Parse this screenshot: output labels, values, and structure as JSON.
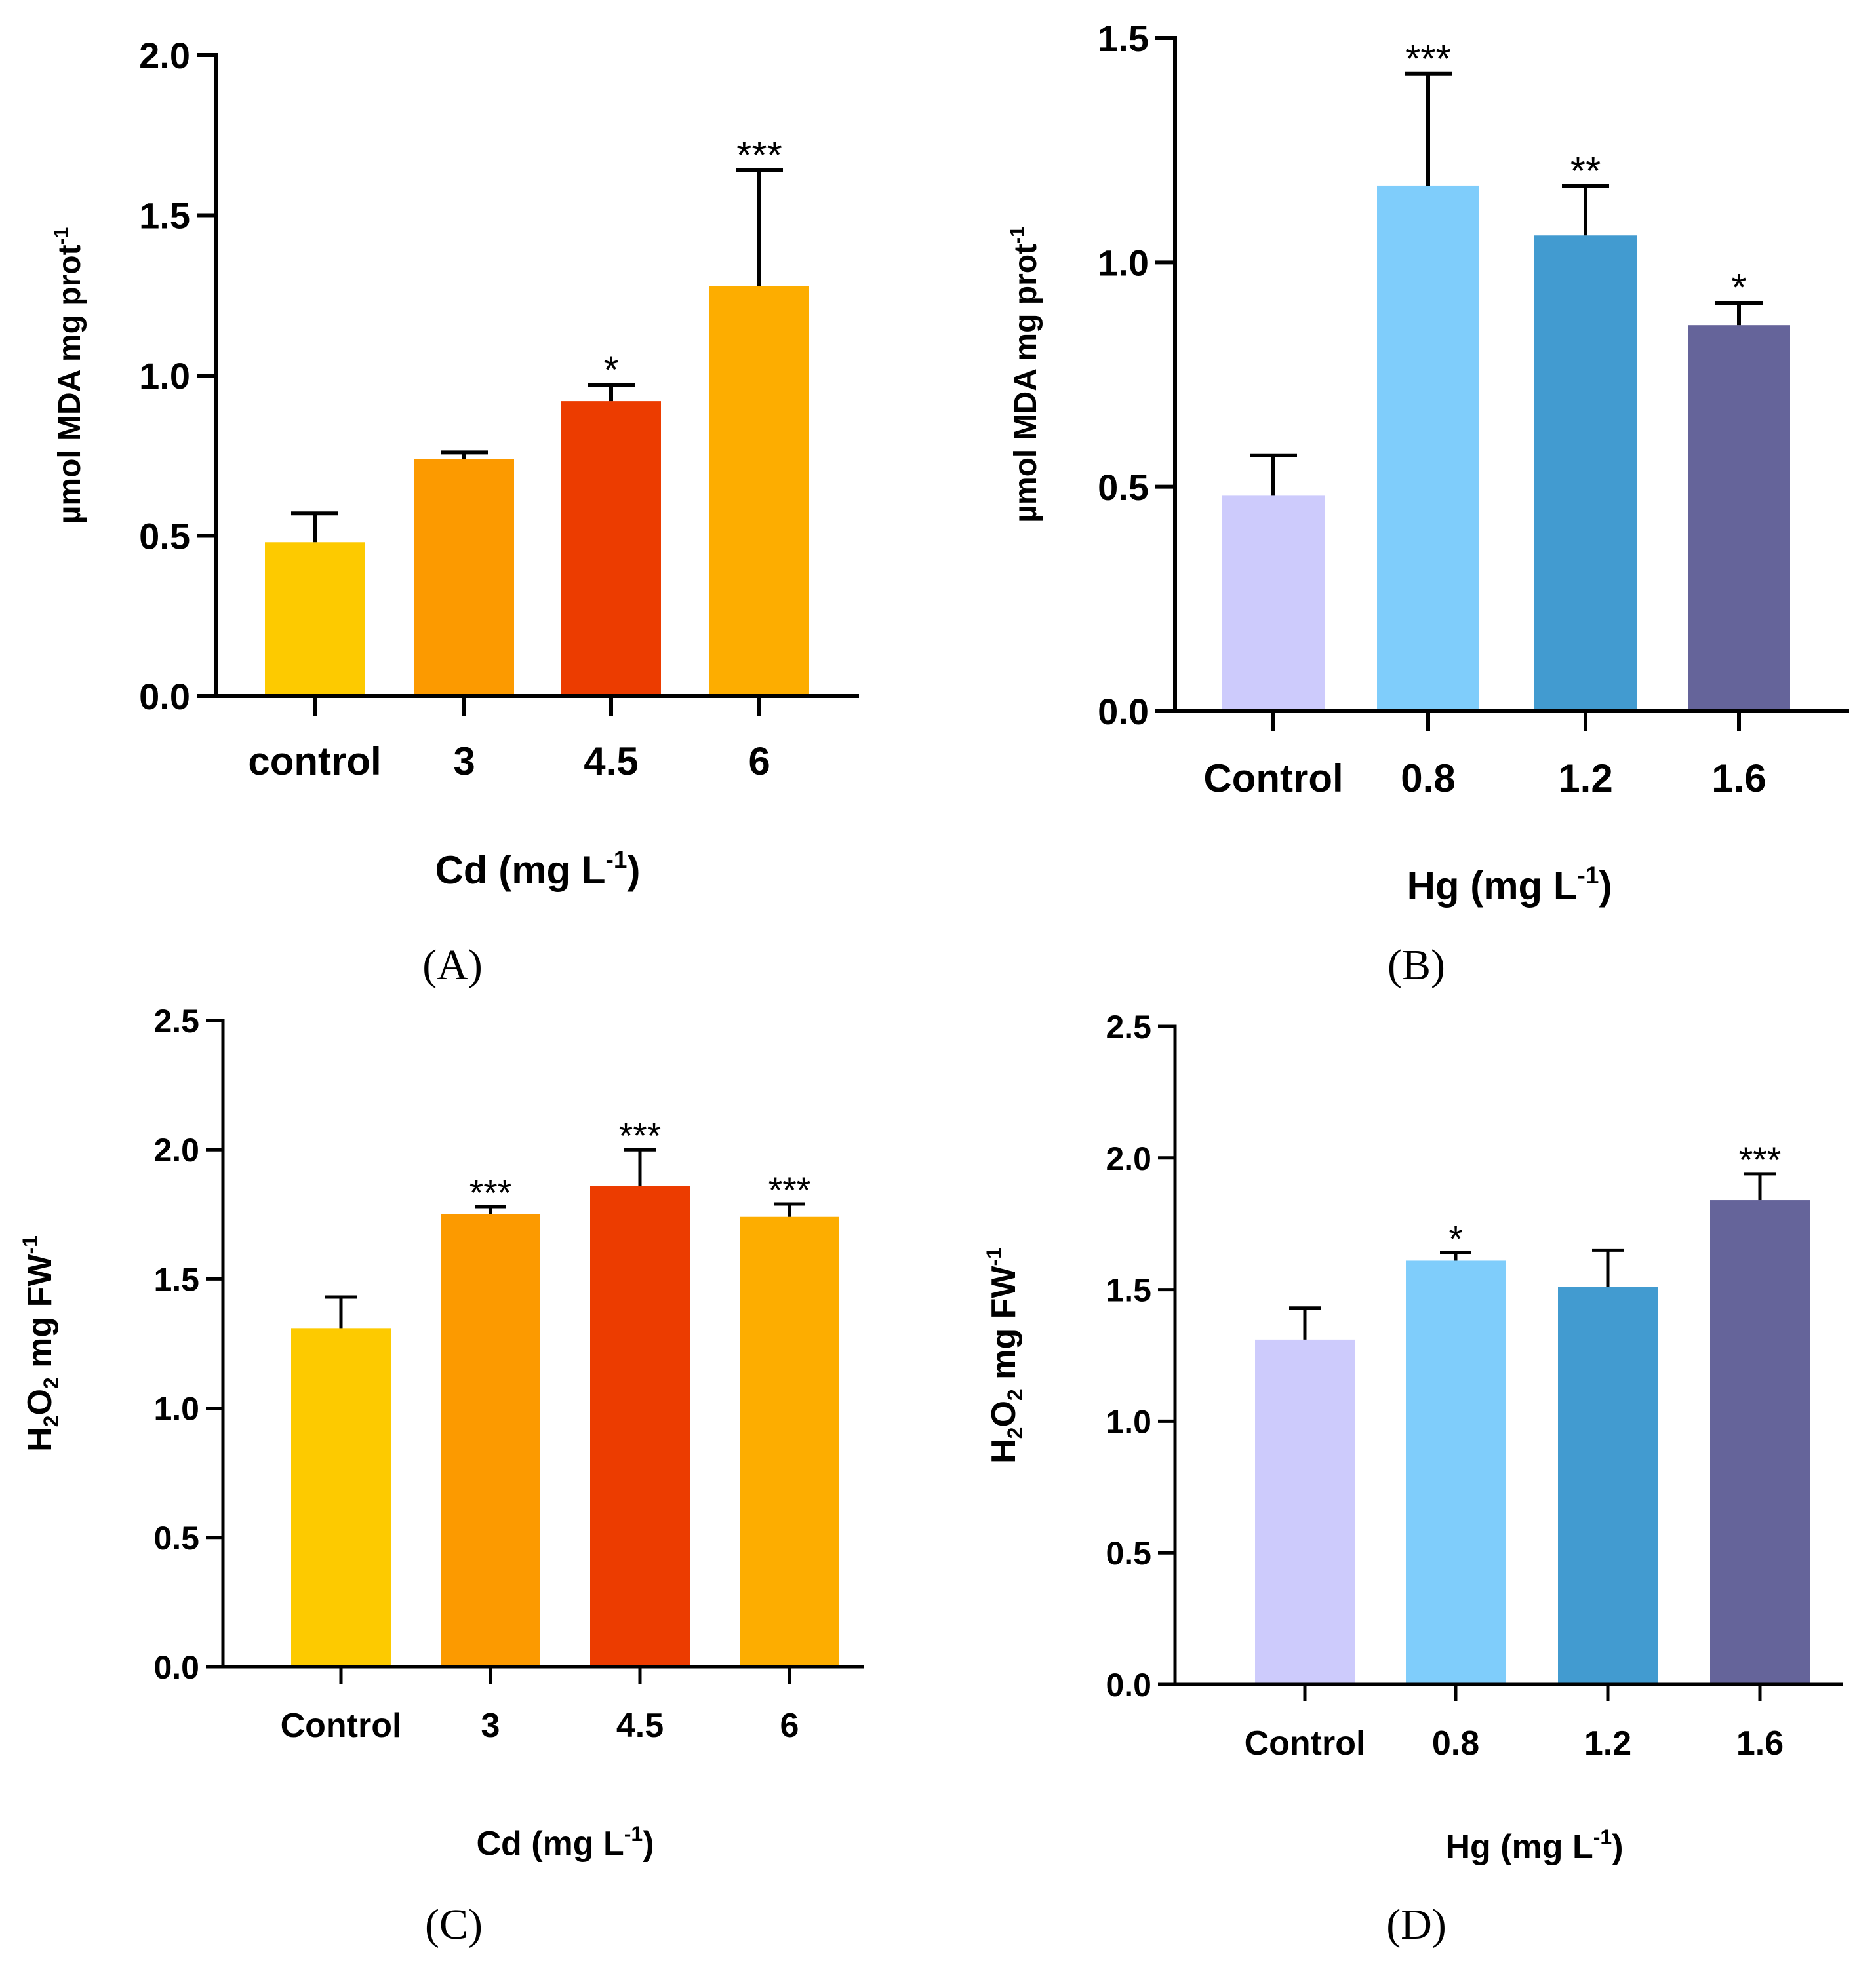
{
  "figure": {
    "panels": [
      {
        "id": "A",
        "label": "(A)"
      },
      {
        "id": "B",
        "label": "(B)"
      },
      {
        "id": "C",
        "label": "(C)"
      },
      {
        "id": "D",
        "label": "(D)"
      }
    ]
  },
  "chart_data": [
    {
      "panel": "A",
      "type": "bar",
      "title": "",
      "xlabel": "Cd (mg L-1)",
      "xlabel_parts": {
        "pre": "Cd (mg L",
        "sup": "-1",
        "post": ")"
      },
      "ylabel": "µmol MDA mg prot-1",
      "ylabel_parts": {
        "pre": "µmol MDA mg prot",
        "sup": "-1",
        "post": ""
      },
      "categories": [
        "control",
        "3",
        "4.5",
        "6"
      ],
      "values": [
        0.48,
        0.74,
        0.92,
        1.28
      ],
      "errors": [
        0.09,
        0.02,
        0.05,
        0.36
      ],
      "significance": [
        "",
        "",
        "*",
        "***"
      ],
      "colors": [
        "#FDCA00",
        "#FC9A00",
        "#EC3C00",
        "#FDAD00"
      ],
      "ylim": [
        0,
        2.0
      ],
      "yticks": [
        0.0,
        0.5,
        1.0,
        1.5,
        2.0
      ],
      "ytick_labels": [
        "0.0",
        "0.5",
        "1.0",
        "1.5",
        "2.0"
      ],
      "grid": false,
      "legend": "none"
    },
    {
      "panel": "B",
      "type": "bar",
      "title": "",
      "xlabel": "Hg (mg L-1)",
      "xlabel_parts": {
        "pre": "Hg (mg L",
        "sup": "-1",
        "post": ")"
      },
      "ylabel": "µmol MDA mg prot-1",
      "ylabel_parts": {
        "pre": "µmol MDA mg prot",
        "sup": "-1",
        "post": ""
      },
      "categories": [
        "Control",
        "0.8",
        "1.2",
        "1.6"
      ],
      "values": [
        0.48,
        1.17,
        1.06,
        0.86
      ],
      "errors": [
        0.09,
        0.25,
        0.11,
        0.05
      ],
      "significance": [
        "",
        "***",
        "**",
        "*"
      ],
      "colors": [
        "#CDCBFC",
        "#7FCDFB",
        "#429BD0",
        "#65649A"
      ],
      "ylim": [
        0,
        1.5
      ],
      "yticks": [
        0.0,
        0.5,
        1.0,
        1.5
      ],
      "ytick_labels": [
        "0.0",
        "0.5",
        "1.0",
        "1.5"
      ],
      "grid": false,
      "legend": "none"
    },
    {
      "panel": "C",
      "type": "bar",
      "title": "",
      "xlabel": "Cd (mg L-1)",
      "xlabel_parts": {
        "pre": "Cd (mg L",
        "sup": "-1",
        "post": ")"
      },
      "ylabel": "H2O2 mg FW-1",
      "ylabel_parts": {
        "pre": "H",
        "sub1": "2",
        "mid": "O",
        "sub2": "2",
        "post": " mg FW",
        "sup": "-1"
      },
      "categories": [
        "Control",
        "3",
        "4.5",
        "6"
      ],
      "values": [
        1.31,
        1.75,
        1.86,
        1.74
      ],
      "errors": [
        0.12,
        0.03,
        0.14,
        0.05
      ],
      "significance": [
        "",
        "***",
        "***",
        "***"
      ],
      "colors": [
        "#FDCA00",
        "#FC9A00",
        "#EC3C00",
        "#FDAD00"
      ],
      "ylim": [
        0,
        2.5
      ],
      "yticks": [
        0.0,
        0.5,
        1.0,
        1.5,
        2.0,
        2.5
      ],
      "ytick_labels": [
        "0.0",
        "0.5",
        "1.0",
        "1.5",
        "2.0",
        "2.5"
      ],
      "grid": false,
      "legend": "none"
    },
    {
      "panel": "D",
      "type": "bar",
      "title": "",
      "xlabel": "Hg (mg L-1)",
      "xlabel_parts": {
        "pre": "Hg (mg L",
        "sup": "-1",
        "post": ")"
      },
      "ylabel": "H2O2 mg FW-1",
      "ylabel_parts": {
        "pre": "H",
        "sub1": "2",
        "mid": "O",
        "sub2": "2",
        "post": " mg FW",
        "sup": "-1"
      },
      "categories": [
        "Control",
        "0.8",
        "1.2",
        "1.6"
      ],
      "values": [
        1.31,
        1.61,
        1.51,
        1.84
      ],
      "errors": [
        0.12,
        0.03,
        0.14,
        0.1
      ],
      "significance": [
        "",
        "*",
        "",
        "***"
      ],
      "colors": [
        "#CDCBFC",
        "#7FCDFB",
        "#429BD0",
        "#65649A"
      ],
      "ylim": [
        0,
        2.5
      ],
      "yticks": [
        0.0,
        0.5,
        1.0,
        1.5,
        2.0,
        2.5
      ],
      "ytick_labels": [
        "0.0",
        "0.5",
        "1.0",
        "1.5",
        "2.0",
        "2.5"
      ],
      "grid": false,
      "legend": "none"
    }
  ]
}
